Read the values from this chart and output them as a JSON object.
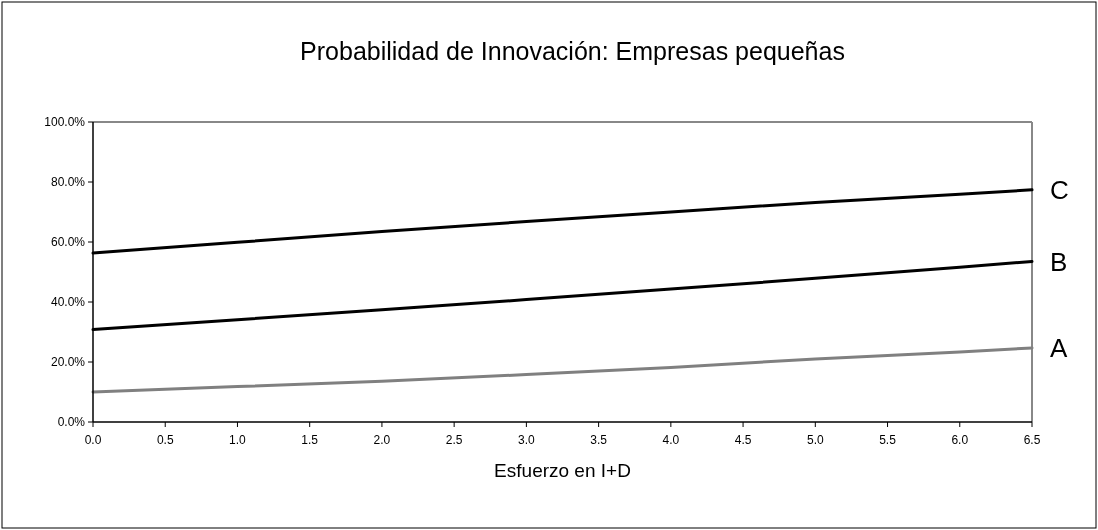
{
  "chart_data": {
    "type": "line",
    "title": "Probabilidad de Innovación: Empresas pequeñas",
    "xlabel": "Esfuerzo en I+D",
    "x": [
      0,
      1,
      2,
      3,
      4,
      5,
      6,
      6.5
    ],
    "series": [
      {
        "name": "A",
        "color": "#808080",
        "values": [
          10.0,
          11.8,
          13.6,
          15.8,
          18.2,
          21.0,
          23.3,
          24.7
        ]
      },
      {
        "name": "B",
        "color": "#000000",
        "values": [
          30.8,
          34.1,
          37.4,
          40.8,
          44.3,
          47.9,
          51.6,
          53.5
        ]
      },
      {
        "name": "C",
        "color": "#000000",
        "values": [
          56.3,
          59.9,
          63.5,
          66.8,
          70.0,
          73.2,
          75.9,
          77.4
        ]
      }
    ],
    "xlim": [
      0,
      6.5
    ],
    "xticks": [
      {
        "value": 0,
        "label": "0.0"
      },
      {
        "value": 0.5,
        "label": "0.5"
      },
      {
        "value": 1,
        "label": "1.0"
      },
      {
        "value": 1.5,
        "label": "1.5"
      },
      {
        "value": 2,
        "label": "2.0"
      },
      {
        "value": 2.5,
        "label": "2.5"
      },
      {
        "value": 3,
        "label": "3.0"
      },
      {
        "value": 3.5,
        "label": "3.5"
      },
      {
        "value": 4,
        "label": "4.0"
      },
      {
        "value": 4.5,
        "label": "4.5"
      },
      {
        "value": 5,
        "label": "5.0"
      },
      {
        "value": 5.5,
        "label": "5.5"
      },
      {
        "value": 6,
        "label": "6.0"
      },
      {
        "value": 6.5,
        "label": "6.5"
      }
    ],
    "ylim": [
      0,
      100
    ],
    "yticks": [
      {
        "value": 0,
        "label": "0.0%"
      },
      {
        "value": 20,
        "label": "20.0%"
      },
      {
        "value": 40,
        "label": "40.0%"
      },
      {
        "value": 60,
        "label": "60.0%"
      },
      {
        "value": 80,
        "label": "80.0%"
      },
      {
        "value": 100,
        "label": "100.0%"
      }
    ],
    "grid": false,
    "marker": "none",
    "line_style": "solid"
  }
}
